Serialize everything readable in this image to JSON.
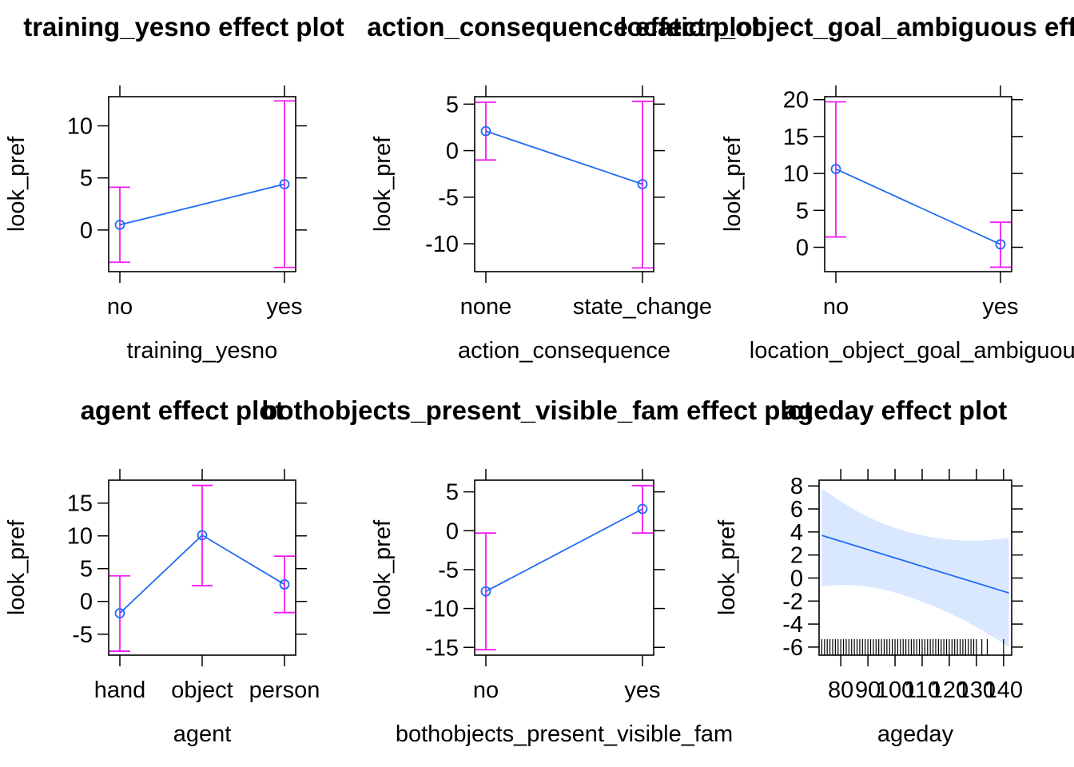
{
  "colors": {
    "line": "#1F6BF2",
    "errorbar": "#F21CF2",
    "band": "#D9E7FF",
    "axis": "#000000"
  },
  "chart_data": [
    {
      "type": "line",
      "title": "training_yesno effect plot",
      "xlabel": "training_yesno",
      "ylabel": "look_pref",
      "categories": [
        "no",
        "yes"
      ],
      "values": [
        0.5,
        4.4
      ],
      "lower": [
        -3.1,
        -3.6
      ],
      "upper": [
        4.1,
        12.4
      ],
      "ylim": [
        -4.0,
        12.8
      ],
      "yticks": [
        0,
        5,
        10
      ]
    },
    {
      "type": "line",
      "title": "action_consequence effect plot",
      "xlabel": "action_consequence",
      "ylabel": "look_pref",
      "categories": [
        "none",
        "state_change"
      ],
      "values": [
        2.1,
        -3.6
      ],
      "lower": [
        -1.0,
        -12.6
      ],
      "upper": [
        5.2,
        5.3
      ],
      "ylim": [
        -13.0,
        5.8
      ],
      "yticks": [
        -10,
        -5,
        0,
        5
      ]
    },
    {
      "type": "line",
      "title": "location_object_goal_ambiguous effect plot",
      "xlabel": "location_object_goal_ambiguous",
      "ylabel": "look_pref",
      "categories": [
        "no",
        "yes"
      ],
      "values": [
        10.6,
        0.4
      ],
      "lower": [
        1.4,
        -2.7
      ],
      "upper": [
        19.7,
        3.4
      ],
      "ylim": [
        -3.3,
        20.4
      ],
      "yticks": [
        0,
        5,
        10,
        15,
        20
      ]
    },
    {
      "type": "line",
      "title": "agent effect plot",
      "xlabel": "agent",
      "ylabel": "look_pref",
      "categories": [
        "hand",
        "object",
        "person"
      ],
      "values": [
        -1.8,
        10.1,
        2.6
      ],
      "lower": [
        -7.6,
        2.4,
        -1.7
      ],
      "upper": [
        3.9,
        17.7,
        6.9
      ],
      "ylim": [
        -8.2,
        18.5
      ],
      "yticks": [
        -5,
        0,
        5,
        10,
        15
      ]
    },
    {
      "type": "line",
      "title": "bothobjects_present_visible_fam effect plot",
      "xlabel": "bothobjects_present_visible_fam",
      "ylabel": "look_pref",
      "categories": [
        "no",
        "yes"
      ],
      "values": [
        -7.8,
        2.8
      ],
      "lower": [
        -15.3,
        -0.3
      ],
      "upper": [
        -0.3,
        5.8
      ],
      "ylim": [
        -16.0,
        6.5
      ],
      "yticks": [
        -15,
        -10,
        -5,
        0,
        5
      ]
    },
    {
      "type": "area",
      "title": "ageday effect plot",
      "xlabel": "ageday",
      "ylabel": "look_pref",
      "x": [
        73,
        142
      ],
      "values": [
        3.7,
        -1.3
      ],
      "lower": [
        -0.7,
        -6.0
      ],
      "upper": [
        7.8,
        3.5
      ],
      "xlim": [
        72,
        143
      ],
      "ylim": [
        -6.7,
        8.5
      ],
      "yticks": [
        -6,
        -4,
        -2,
        0,
        2,
        4,
        6,
        8
      ],
      "xticks": [
        80,
        90,
        100,
        110,
        120,
        130,
        140
      ],
      "xtick_labels": [
        "80",
        "90",
        "100",
        "110",
        "120",
        "130",
        "140"
      ],
      "rug": [
        73,
        74,
        75,
        76,
        77,
        78,
        79,
        80,
        81,
        82,
        83,
        84,
        85,
        86,
        87,
        88,
        89,
        90,
        91,
        92,
        93,
        94,
        95,
        96,
        97,
        98,
        99,
        100,
        101,
        102,
        103,
        104,
        105,
        106,
        107,
        108,
        109,
        110,
        111,
        112,
        113,
        114,
        115,
        116,
        117,
        118,
        119,
        120,
        121,
        122,
        123,
        124,
        125,
        126,
        127,
        128,
        129,
        130,
        132,
        134,
        140
      ]
    }
  ]
}
